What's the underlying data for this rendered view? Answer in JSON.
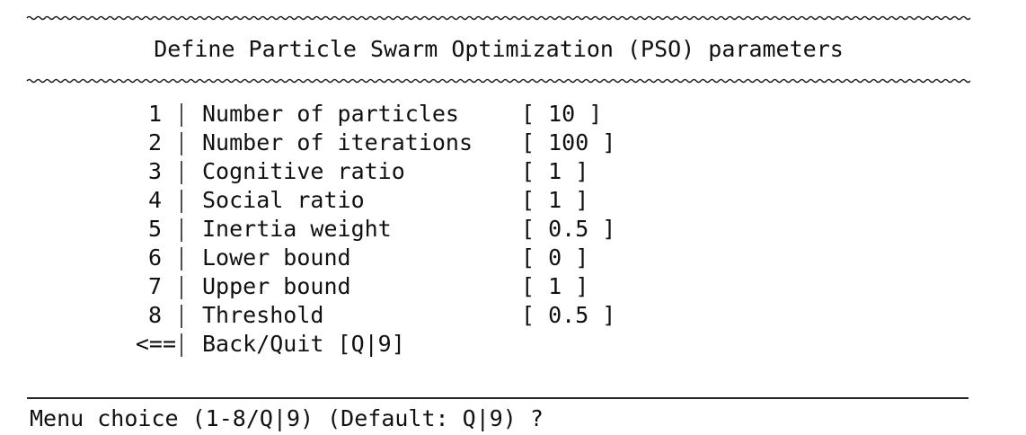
{
  "header": {
    "title": "Define Particle Swarm Optimization (PSO) parameters"
  },
  "menu": {
    "items": [
      {
        "key": "1",
        "label": "Number of particles",
        "value": "[ 10 ]"
      },
      {
        "key": "2",
        "label": "Number of iterations",
        "value": "[ 100 ]"
      },
      {
        "key": "3",
        "label": "Cognitive ratio",
        "value": "[ 1 ]"
      },
      {
        "key": "4",
        "label": "Social ratio",
        "value": "[ 1 ]"
      },
      {
        "key": "5",
        "label": "Inertia weight",
        "value": "[ 0.5 ]"
      },
      {
        "key": "6",
        "label": "Lower bound",
        "value": "[ 0 ]"
      },
      {
        "key": "7",
        "label": "Upper bound",
        "value": "[ 1 ]"
      },
      {
        "key": "8",
        "label": "Threshold",
        "value": "[ 0.5 ]"
      }
    ],
    "back": {
      "key": "<==",
      "label": "Back/Quit [Q|9]"
    }
  },
  "prompt": "Menu choice (1-8/Q|9) (Default: Q|9) ?"
}
